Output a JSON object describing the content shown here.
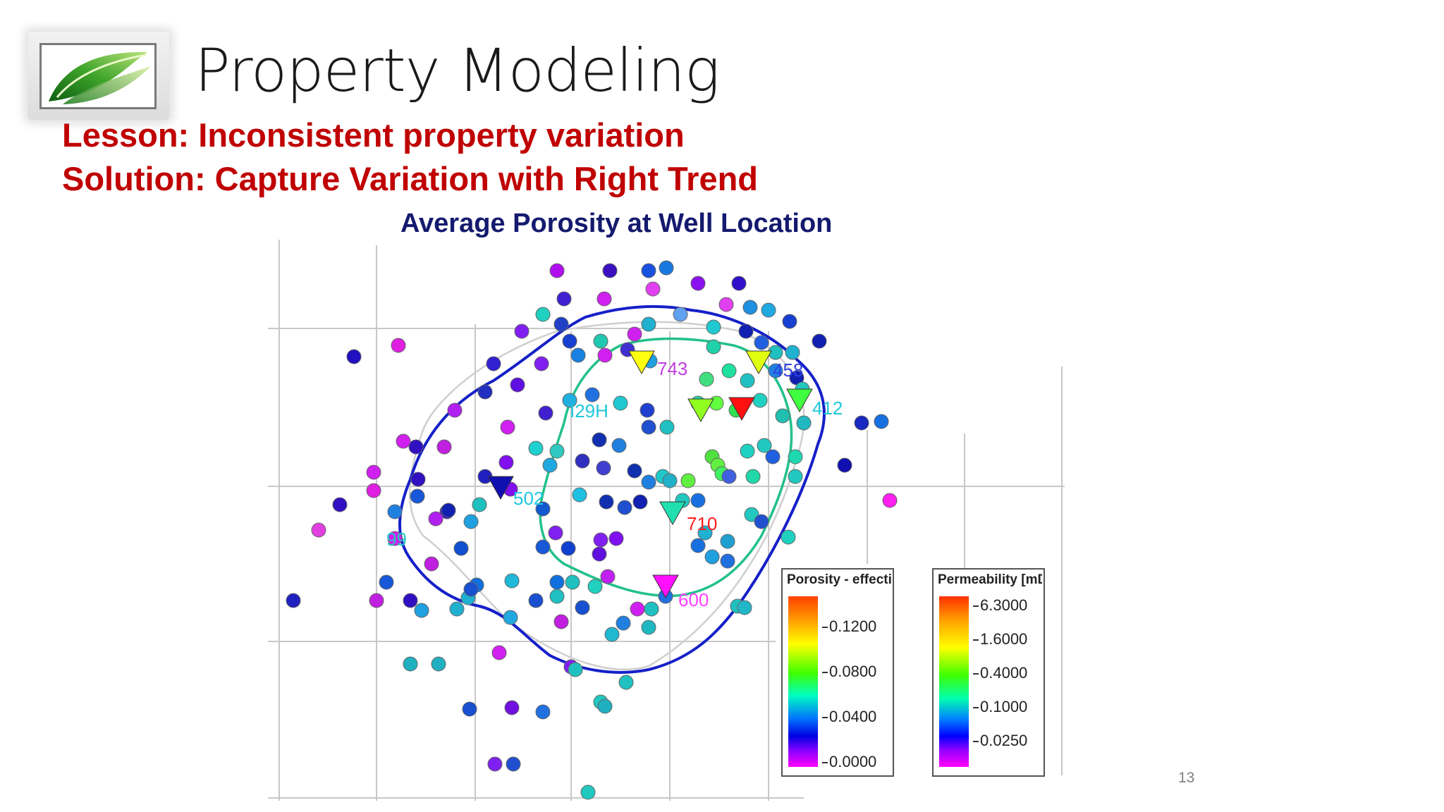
{
  "slide": {
    "title": "Property Modeling",
    "lesson": "Lesson: Inconsistent property variation",
    "solution": "Solution: Capture Variation with Right Trend",
    "map_title": "Average Porosity at Well Location",
    "page_number": "13"
  },
  "map": {
    "well_labels": [
      "743",
      "458",
      "412",
      "I29H",
      "502",
      "710",
      "99",
      "600"
    ],
    "porosity_legend": {
      "title": "Porosity - effectiv",
      "ticks": [
        "0.1200",
        "0.0800",
        "0.0400",
        "0.0000"
      ]
    },
    "permeability_legend": {
      "title": "Permeability [mD",
      "ticks": [
        "6.3000",
        "1.6000",
        "0.4000",
        "0.1000",
        "0.0250"
      ]
    },
    "colors": {
      "outer_boundary": "#1520c8",
      "inner_trend": "#22c08a",
      "low_porosity": "#ff00ff",
      "high_porosity": "#ff2000"
    }
  }
}
